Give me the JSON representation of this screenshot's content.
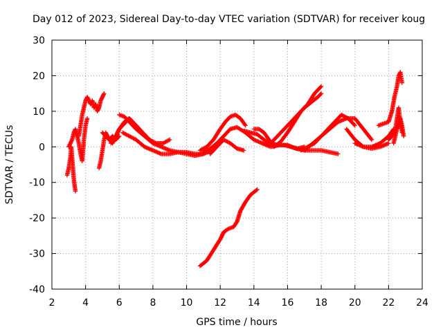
{
  "chart_data": {
    "type": "scatter",
    "title": "Day 012 of 2023, Sidereal Day-to-day VTEC variation (SDTVAR) for receiver koug",
    "xlabel": "GPS time / hours",
    "ylabel": "SDTVAR / TECUs",
    "xlim": [
      2,
      24
    ],
    "ylim": [
      -40,
      30
    ],
    "xticks": [
      2,
      4,
      6,
      8,
      10,
      12,
      14,
      16,
      18,
      20,
      22,
      24
    ],
    "yticks": [
      -40,
      -30,
      -20,
      -10,
      0,
      10,
      20,
      30
    ],
    "xtick_labels": [
      "2",
      "4",
      "6",
      "8",
      "10",
      "12",
      "14",
      "16",
      "18",
      "20",
      "22",
      "24"
    ],
    "ytick_labels": [
      "-40",
      "-30",
      "-20",
      "-10",
      "0",
      "10",
      "20",
      "30"
    ],
    "grid": true,
    "marker": "plus",
    "color": "#ff0000",
    "series": [
      {
        "name": "s1",
        "x": [
          2.9,
          3.0,
          3.1,
          3.15,
          3.2,
          3.25,
          3.3,
          3.35,
          3.4
        ],
        "y": [
          -8,
          -6,
          -3,
          0,
          -3,
          -6,
          -9,
          -11,
          -12.5
        ]
      },
      {
        "name": "s2",
        "x": [
          3.0,
          3.1,
          3.2,
          3.3,
          3.4,
          3.5,
          3.6,
          3.7,
          3.8,
          3.9,
          4.0,
          4.1
        ],
        "y": [
          0,
          1,
          2,
          4,
          5,
          3,
          1,
          -2,
          -4,
          2,
          6,
          8
        ]
      },
      {
        "name": "s3",
        "x": [
          3.6,
          3.7,
          3.8,
          3.9,
          4.0,
          4.1,
          4.2,
          4.3,
          4.4,
          4.5,
          4.6,
          4.7,
          4.8,
          4.9,
          5.0,
          5.1
        ],
        "y": [
          3,
          6,
          9,
          11,
          13,
          14,
          13,
          12,
          13,
          11,
          12,
          10,
          11,
          13,
          14,
          15
        ]
      },
      {
        "name": "s4",
        "x": [
          4.8,
          4.9,
          5.0,
          5.1,
          5.2,
          5.3,
          5.4,
          5.6,
          5.8,
          6.0
        ],
        "y": [
          -6,
          -4,
          -1,
          2,
          4,
          3,
          2,
          3,
          2,
          3
        ]
      },
      {
        "name": "s5",
        "x": [
          5.0,
          5.2,
          5.4,
          5.6,
          5.8,
          6.0,
          6.2,
          6.4,
          6.6,
          6.8,
          7.0,
          7.2
        ],
        "y": [
          4,
          3,
          2,
          1,
          3,
          5,
          6,
          7,
          8,
          7,
          6,
          5
        ]
      },
      {
        "name": "s6",
        "x": [
          5.5,
          5.8,
          6.0,
          6.3,
          6.6,
          7.0,
          7.4,
          7.8,
          8.2,
          8.6,
          9.0
        ],
        "y": [
          1,
          3,
          5,
          7,
          8,
          6,
          4,
          2,
          1,
          1,
          2
        ]
      },
      {
        "name": "s7",
        "x": [
          6.0,
          6.3,
          6.6,
          7.0,
          7.5,
          8.0,
          8.5,
          9.0,
          9.5,
          10.0,
          10.5,
          11.0,
          11.5
        ],
        "y": [
          9,
          8.5,
          7,
          5,
          3,
          1,
          0,
          -1,
          -1.5,
          -1.5,
          -2,
          -2,
          -1
        ]
      },
      {
        "name": "s8",
        "x": [
          6.2,
          6.6,
          7.0,
          7.5,
          8.0,
          8.5,
          9.0,
          9.5,
          10.0,
          10.5,
          11.0
        ],
        "y": [
          4,
          3,
          2,
          0,
          -1,
          -2,
          -2,
          -1.5,
          -2,
          -2.5,
          -2
        ]
      },
      {
        "name": "s9",
        "x": [
          10.8,
          11.2,
          11.6,
          12.0,
          12.2,
          12.5,
          12.8,
          13.0,
          13.2,
          13.5,
          13.8,
          14.2
        ],
        "y": [
          -33.5,
          -32,
          -29,
          -26,
          -24,
          -23,
          -22.5,
          -21,
          -18,
          -15.5,
          -13.5,
          -12
        ]
      },
      {
        "name": "s10",
        "x": [
          10.8,
          11.2,
          11.6,
          12.0,
          12.3,
          12.6,
          12.9,
          13.2,
          13.5
        ],
        "y": [
          -1,
          0,
          2,
          5,
          7,
          8.5,
          9,
          8,
          6
        ]
      },
      {
        "name": "s11",
        "x": [
          11.0,
          11.4,
          11.8,
          12.2,
          12.6,
          13.0,
          13.5,
          14.0,
          14.5,
          15.0,
          15.5
        ],
        "y": [
          -1.5,
          -0.5,
          1,
          3,
          5,
          5.5,
          4,
          2,
          1,
          0,
          0.5
        ]
      },
      {
        "name": "s12",
        "x": [
          11.4,
          11.8,
          12.2,
          12.6,
          13.0,
          13.4
        ],
        "y": [
          -2,
          0,
          2,
          1,
          -0.5,
          -1
        ]
      },
      {
        "name": "s13",
        "x": [
          13.4,
          13.8,
          14.2,
          14.6,
          15.0,
          15.4,
          15.8,
          16.2,
          16.6,
          17.0
        ],
        "y": [
          4.5,
          4,
          3.5,
          2,
          1,
          0.5,
          0.5,
          0,
          -0.5,
          0
        ]
      },
      {
        "name": "s14",
        "x": [
          14.0,
          14.3,
          14.6,
          14.9,
          15.2,
          15.6,
          16.0,
          16.4,
          16.8,
          17.2,
          17.6,
          18.0
        ],
        "y": [
          5,
          5,
          4,
          2,
          0,
          1.5,
          4,
          7,
          10,
          12,
          15,
          17
        ]
      },
      {
        "name": "s15",
        "x": [
          15.0,
          15.4,
          15.8,
          16.2,
          16.6,
          17.0,
          17.4,
          17.8,
          18.0
        ],
        "y": [
          1,
          3,
          5,
          7,
          9,
          11,
          12.5,
          14,
          15
        ]
      },
      {
        "name": "s16",
        "x": [
          14.5,
          15.0,
          15.5,
          16.0,
          16.5,
          17.0,
          17.5,
          18.0,
          18.5,
          19.0
        ],
        "y": [
          1,
          0.5,
          0.5,
          0.5,
          -0.5,
          -1,
          -1,
          -1,
          -1.5,
          -2
        ]
      },
      {
        "name": "s17",
        "x": [
          16.8,
          17.2,
          17.6,
          18.0,
          18.4,
          18.8,
          19.2,
          19.6,
          20.0
        ],
        "y": [
          -1,
          0,
          1,
          3,
          5,
          7,
          9,
          8,
          6
        ]
      },
      {
        "name": "s18",
        "x": [
          17.0,
          17.5,
          18.0,
          18.5,
          19.0,
          19.5,
          20.0,
          20.5,
          21.0
        ],
        "y": [
          -1,
          1,
          3,
          5,
          7,
          8,
          8,
          5,
          2
        ]
      },
      {
        "name": "s19",
        "x": [
          19.5,
          20.0,
          20.5,
          21.0,
          21.5,
          22.0,
          22.3
        ],
        "y": [
          5,
          2,
          0,
          0,
          1,
          3,
          5
        ]
      },
      {
        "name": "s20",
        "x": [
          20.0,
          20.5,
          21.0,
          21.5,
          22.0
        ],
        "y": [
          1,
          0,
          -0.5,
          0,
          1
        ]
      },
      {
        "name": "s21",
        "x": [
          21.4,
          21.7,
          22.0,
          22.2,
          22.35,
          22.5,
          22.6,
          22.7,
          22.8
        ],
        "y": [
          6,
          6.5,
          7,
          10,
          14,
          17,
          20,
          21,
          18
        ]
      },
      {
        "name": "s22",
        "x": [
          22.0,
          22.2,
          22.4,
          22.5,
          22.6,
          22.7,
          22.8
        ],
        "y": [
          2,
          3,
          5,
          8,
          11,
          7,
          4
        ]
      },
      {
        "name": "s23",
        "x": [
          22.3,
          22.4,
          22.5,
          22.6,
          22.7,
          22.8,
          22.9
        ],
        "y": [
          1,
          3,
          5,
          6,
          8,
          6,
          3
        ]
      }
    ]
  }
}
